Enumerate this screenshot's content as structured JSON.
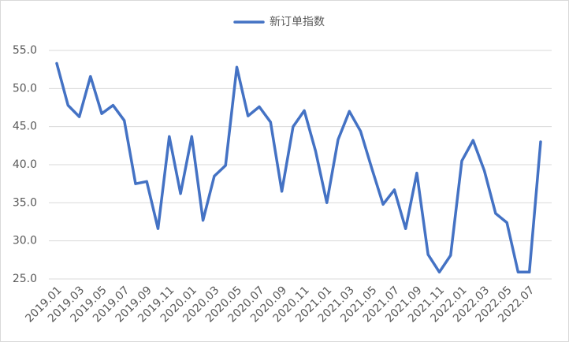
{
  "chart_data": {
    "type": "line",
    "categories": [
      "2019.01",
      null,
      "2019.03",
      null,
      "2019.05",
      null,
      "2019.07",
      null,
      "2019.09",
      null,
      "2019.11",
      null,
      "2020.01",
      null,
      "2020.03",
      null,
      "2020.05",
      null,
      "2020.07",
      null,
      "2020.09",
      null,
      "2020.11",
      null,
      "2021.01",
      null,
      "2021.03",
      null,
      "2021.05",
      null,
      "2021.07",
      null,
      "2021.09",
      null,
      "2021.11",
      null,
      "2022.01",
      null,
      "2022.03",
      null,
      "2022.05",
      null,
      "2022.07",
      null
    ],
    "series": [
      {
        "name": "新订单指数",
        "color": "#4472c4",
        "values": [
          53.3,
          47.8,
          46.3,
          51.6,
          46.7,
          47.8,
          45.8,
          37.5,
          37.8,
          31.6,
          43.7,
          36.2,
          43.7,
          32.7,
          38.5,
          39.9,
          52.8,
          46.4,
          47.6,
          45.6,
          36.5,
          45.0,
          47.1,
          41.8,
          35.0,
          43.3,
          47.0,
          44.4,
          39.5,
          34.8,
          36.7,
          31.6,
          38.9,
          28.2,
          25.9,
          28.1,
          40.5,
          43.2,
          39.2,
          33.6,
          32.4,
          25.9,
          25.9,
          43.0
        ]
      }
    ],
    "ylim": [
      25,
      55
    ],
    "yticks": [
      {
        "value": 25,
        "label": "25.0"
      },
      {
        "value": 30,
        "label": "30.0"
      },
      {
        "value": 35,
        "label": "35.0"
      },
      {
        "value": 40,
        "label": "40.0"
      },
      {
        "value": 45,
        "label": "45.0"
      },
      {
        "value": 50,
        "label": "50.0"
      },
      {
        "value": 55,
        "label": "55.0"
      }
    ],
    "grid": true,
    "legend": "top"
  }
}
